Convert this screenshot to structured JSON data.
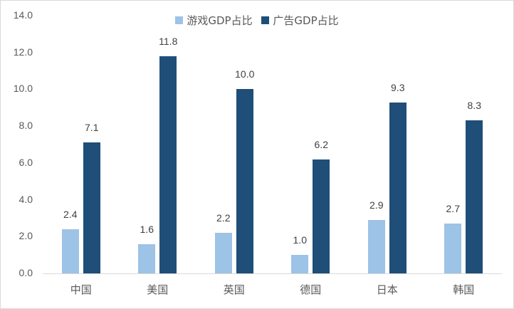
{
  "chart_data": {
    "type": "bar",
    "title": "",
    "xlabel": "",
    "ylabel": "",
    "ylim": [
      0,
      14
    ],
    "yticks": [
      "0.0",
      "2.0",
      "4.0",
      "6.0",
      "8.0",
      "10.0",
      "12.0",
      "14.0"
    ],
    "grid": false,
    "legend_position": "top",
    "categories": [
      "中国",
      "美国",
      "英国",
      "德国",
      "日本",
      "韩国"
    ],
    "series": [
      {
        "name": "游戏GDP占比",
        "color": "#9dc3e6",
        "values": [
          2.4,
          1.6,
          2.2,
          1.0,
          2.9,
          2.7
        ],
        "labels": [
          "2.4",
          "1.6",
          "2.2",
          "1.0",
          "2.9",
          "2.7"
        ]
      },
      {
        "name": "广告GDP占比",
        "color": "#1f4e79",
        "values": [
          7.1,
          11.8,
          10.0,
          6.2,
          9.3,
          8.3
        ],
        "labels": [
          "7.1",
          "11.8",
          "10.0",
          "6.2",
          "9.3",
          "8.3"
        ]
      }
    ]
  }
}
